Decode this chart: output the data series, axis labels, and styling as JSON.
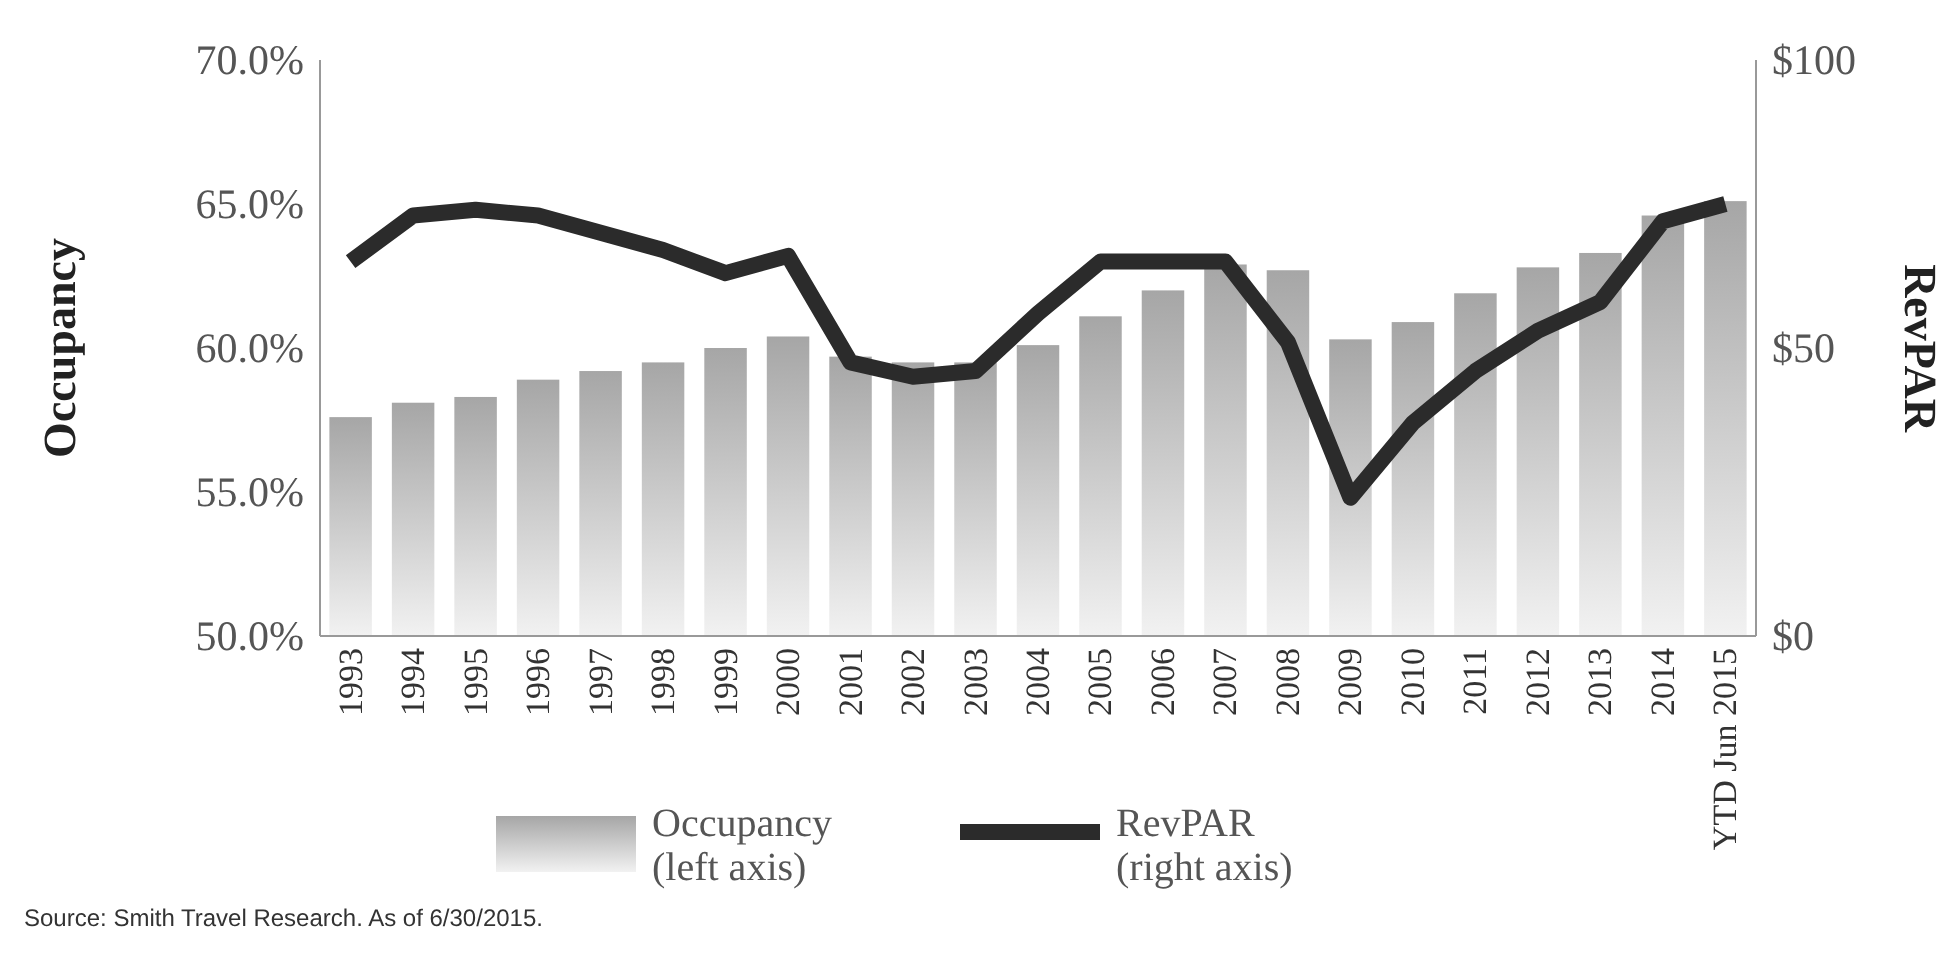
{
  "chart_data": {
    "type": "bar",
    "ylabel": "Occupancy",
    "y2label": "RevPAR",
    "categories": [
      "1993",
      "1994",
      "1995",
      "1996",
      "1997",
      "1998",
      "1999",
      "2000",
      "2001",
      "2002",
      "2003",
      "2004",
      "2005",
      "2006",
      "2007",
      "2008",
      "2009",
      "2010",
      "2011",
      "2012",
      "2013",
      "2014",
      "YTD Jun 2015"
    ],
    "series": [
      {
        "name": "Occupancy\n(left axis)",
        "color": "#a6a6a6",
        "values": [
          57.6,
          58.1,
          58.3,
          58.9,
          59.2,
          59.5,
          60.0,
          60.4,
          59.7,
          59.5,
          59.5,
          60.1,
          61.1,
          62.0,
          62.9,
          62.7,
          60.3,
          60.9,
          61.9,
          62.8,
          63.3,
          64.6,
          65.1
        ]
      },
      {
        "name": "RevPAR\n(right axis)",
        "type": "line",
        "axis": "y2",
        "color": "#2b2b2b",
        "values": [
          65,
          73,
          74,
          73,
          70,
          67,
          63,
          66,
          47.5,
          45,
          46,
          56,
          65,
          65,
          65,
          51,
          24,
          37,
          46,
          53,
          58,
          72,
          75
        ]
      }
    ],
    "ylim": [
      50,
      70
    ],
    "yticks": [
      {
        "value": 50,
        "label": "50.0%"
      },
      {
        "value": 55,
        "label": "55.0%"
      },
      {
        "value": 60,
        "label": "60.0%"
      },
      {
        "value": 65,
        "label": "65.0%"
      },
      {
        "value": 70,
        "label": "70.0%"
      }
    ],
    "y2lim": [
      0,
      100
    ],
    "y2ticks": [
      {
        "value": 0,
        "label": "$0"
      },
      {
        "value": 50,
        "label": "$50"
      },
      {
        "value": 100,
        "label": "$100"
      }
    ],
    "legend": "bottom",
    "marker": "none",
    "annotations": [
      "Source: Smith Travel Research. As of 6/30/2015."
    ]
  }
}
